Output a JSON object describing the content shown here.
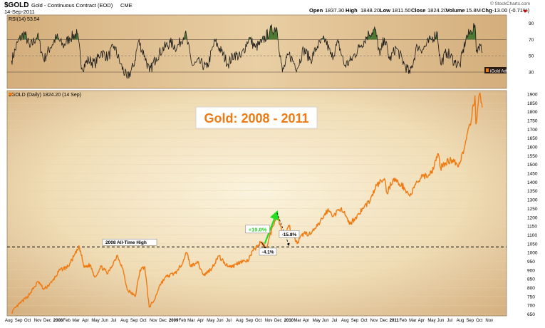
{
  "header": {
    "symbol": "$GOLD",
    "description": "Gold - Continuous Contract (EOD)",
    "exchange": "CME",
    "date": "14-Sep-2011",
    "open_label": "Open",
    "open": "1837.30",
    "high_label": "High",
    "high": "1848.20",
    "low_label": "Low",
    "low": "1811.50",
    "close_label": "Close",
    "close": "1824.20",
    "volume_label": "Volume",
    "volume": "15.8M",
    "chg_label": "Chg",
    "chg": "-13.00 (-0.71%)",
    "watermark": "© StockCharts.com"
  },
  "chart_data": [
    {
      "type": "line",
      "legend": "RSI(14) 53.54",
      "badge": "iGold Advisor",
      "ylim": [
        10,
        100
      ],
      "yticks": [
        30,
        50,
        70,
        90
      ],
      "guide_levels": [
        30,
        50,
        70
      ],
      "overbought": 70,
      "x_start": "2007-08",
      "x_end": "2011-09-14",
      "series": [
        {
          "name": "RSI(14)",
          "points": [
            [
              "2007-08-15",
              44
            ],
            [
              "2007-09-05",
              68
            ],
            [
              "2007-09-25",
              78
            ],
            [
              "2007-10-12",
              60
            ],
            [
              "2007-11-05",
              75
            ],
            [
              "2007-11-25",
              45
            ],
            [
              "2007-12-15",
              60
            ],
            [
              "2008-01-05",
              73
            ],
            [
              "2008-01-25",
              62
            ],
            [
              "2008-02-15",
              72
            ],
            [
              "2008-03-10",
              77
            ],
            [
              "2008-03-25",
              35
            ],
            [
              "2008-04-15",
              45
            ],
            [
              "2008-05-05",
              40
            ],
            [
              "2008-05-25",
              55
            ],
            [
              "2008-06-15",
              48
            ],
            [
              "2008-07-05",
              62
            ],
            [
              "2008-07-25",
              40
            ],
            [
              "2008-08-15",
              22
            ],
            [
              "2008-09-05",
              38
            ],
            [
              "2008-09-20",
              68
            ],
            [
              "2008-10-10",
              50
            ],
            [
              "2008-10-25",
              30
            ],
            [
              "2008-11-15",
              48
            ],
            [
              "2008-12-05",
              58
            ],
            [
              "2008-12-30",
              66
            ],
            [
              "2009-01-20",
              60
            ],
            [
              "2009-02-15",
              78
            ],
            [
              "2009-03-10",
              38
            ],
            [
              "2009-04-01",
              42
            ],
            [
              "2009-04-25",
              35
            ],
            [
              "2009-05-20",
              68
            ],
            [
              "2009-06-10",
              55
            ],
            [
              "2009-07-01",
              40
            ],
            [
              "2009-07-20",
              52
            ],
            [
              "2009-08-10",
              48
            ],
            [
              "2009-09-05",
              72
            ],
            [
              "2009-09-25",
              60
            ],
            [
              "2009-10-15",
              66
            ],
            [
              "2009-11-10",
              80
            ],
            [
              "2009-12-02",
              85
            ],
            [
              "2009-12-20",
              30
            ],
            [
              "2010-01-10",
              52
            ],
            [
              "2010-02-05",
              35
            ],
            [
              "2010-02-25",
              58
            ],
            [
              "2010-03-20",
              45
            ],
            [
              "2010-04-10",
              62
            ],
            [
              "2010-05-05",
              70
            ],
            [
              "2010-05-25",
              48
            ],
            [
              "2010-06-15",
              66
            ],
            [
              "2010-07-05",
              38
            ],
            [
              "2010-07-25",
              44
            ],
            [
              "2010-08-20",
              60
            ],
            [
              "2010-09-20",
              77
            ],
            [
              "2010-10-10",
              82
            ],
            [
              "2010-10-25",
              50
            ],
            [
              "2010-11-08",
              72
            ],
            [
              "2010-11-25",
              45
            ],
            [
              "2010-12-15",
              60
            ],
            [
              "2011-01-10",
              40
            ],
            [
              "2011-01-28",
              28
            ],
            [
              "2011-02-20",
              62
            ],
            [
              "2011-03-10",
              58
            ],
            [
              "2011-04-05",
              70
            ],
            [
              "2011-04-25",
              78
            ],
            [
              "2011-05-05",
              40
            ],
            [
              "2011-05-25",
              55
            ],
            [
              "2011-06-20",
              42
            ],
            [
              "2011-07-05",
              38
            ],
            [
              "2011-07-25",
              72
            ],
            [
              "2011-08-10",
              80
            ],
            [
              "2011-08-22",
              88
            ],
            [
              "2011-08-26",
              55
            ],
            [
              "2011-09-06",
              65
            ],
            [
              "2011-09-14",
              53.54
            ]
          ]
        }
      ]
    },
    {
      "type": "line",
      "legend": "$GOLD (Daily) 1824.20 (14 Sep)",
      "title": "Gold: 2008 - 2011",
      "ylim": [
        640,
        1920
      ],
      "yticks": [
        650,
        700,
        750,
        800,
        850,
        900,
        950,
        1000,
        1050,
        1100,
        1150,
        1200,
        1250,
        1300,
        1350,
        1400,
        1450,
        1500,
        1550,
        1600,
        1650,
        1700,
        1750,
        1800,
        1850,
        1900
      ],
      "x_labels": [
        "Aug",
        "Sep",
        "Oct",
        "Nov",
        "Dec",
        "2008",
        "Feb",
        "Mar",
        "Apr",
        "May",
        "Jun",
        "Jul",
        "Aug",
        "Sep",
        "Oct",
        "Nov",
        "Dec",
        "2009",
        "Feb",
        "Mar",
        "Apr",
        "May",
        "Jun",
        "Jul",
        "Aug",
        "Sep",
        "Oct",
        "Nov",
        "Dec",
        "2010",
        "Mar",
        "Apr",
        "May",
        "Jun",
        "Jul",
        "Aug",
        "Sep",
        "Oct",
        "Nov",
        "Dec",
        "2011",
        "Feb",
        "Mar",
        "Apr",
        "May",
        "Jun",
        "Jul",
        "Aug",
        "Sep",
        "Oct",
        "Nov"
      ],
      "reference_line": {
        "label": "2008 All-Time High",
        "value": 1032
      },
      "series": [
        {
          "name": "$GOLD",
          "points": [
            [
              "2007-08-15",
              660
            ],
            [
              "2007-09-10",
              710
            ],
            [
              "2007-10-05",
              750
            ],
            [
              "2007-11-08",
              835
            ],
            [
              "2007-11-25",
              790
            ],
            [
              "2007-12-20",
              830
            ],
            [
              "2008-01-15",
              900
            ],
            [
              "2008-02-10",
              920
            ],
            [
              "2008-03-17",
              1032
            ],
            [
              "2008-04-01",
              915
            ],
            [
              "2008-04-20",
              930
            ],
            [
              "2008-05-05",
              860
            ],
            [
              "2008-05-25",
              920
            ],
            [
              "2008-06-15",
              880
            ],
            [
              "2008-07-15",
              985
            ],
            [
              "2008-08-01",
              910
            ],
            [
              "2008-08-15",
              790
            ],
            [
              "2008-09-10",
              750
            ],
            [
              "2008-09-25",
              900
            ],
            [
              "2008-10-10",
              920
            ],
            [
              "2008-10-24",
              690
            ],
            [
              "2008-11-10",
              730
            ],
            [
              "2008-11-25",
              810
            ],
            [
              "2008-12-15",
              860
            ],
            [
              "2009-01-10",
              880
            ],
            [
              "2009-01-25",
              900
            ],
            [
              "2009-02-20",
              1000
            ],
            [
              "2009-03-05",
              920
            ],
            [
              "2009-03-25",
              950
            ],
            [
              "2009-04-15",
              870
            ],
            [
              "2009-05-10",
              910
            ],
            [
              "2009-06-01",
              980
            ],
            [
              "2009-06-25",
              930
            ],
            [
              "2009-07-15",
              920
            ],
            [
              "2009-08-10",
              950
            ],
            [
              "2009-09-01",
              950
            ],
            [
              "2009-09-18",
              1010
            ],
            [
              "2009-10-14",
              1060
            ],
            [
              "2009-10-29",
              1020
            ],
            [
              "2009-11-20",
              1150
            ],
            [
              "2009-12-03",
              1226
            ],
            [
              "2009-12-22",
              1090
            ],
            [
              "2010-01-10",
              1150
            ],
            [
              "2010-02-05",
              1050
            ],
            [
              "2010-02-25",
              1110
            ],
            [
              "2010-03-20",
              1105
            ],
            [
              "2010-04-10",
              1150
            ],
            [
              "2010-05-12",
              1240
            ],
            [
              "2010-06-01",
              1210
            ],
            [
              "2010-06-25",
              1255
            ],
            [
              "2010-07-20",
              1160
            ],
            [
              "2010-08-10",
              1200
            ],
            [
              "2010-09-01",
              1250
            ],
            [
              "2010-09-25",
              1300
            ],
            [
              "2010-10-14",
              1380
            ],
            [
              "2010-11-08",
              1420
            ],
            [
              "2010-11-16",
              1340
            ],
            [
              "2010-12-07",
              1420
            ],
            [
              "2010-12-25",
              1390
            ],
            [
              "2011-01-10",
              1370
            ],
            [
              "2011-01-28",
              1320
            ],
            [
              "2011-02-20",
              1400
            ],
            [
              "2011-03-10",
              1430
            ],
            [
              "2011-04-05",
              1450
            ],
            [
              "2011-04-28",
              1560
            ],
            [
              "2011-05-05",
              1480
            ],
            [
              "2011-05-20",
              1510
            ],
            [
              "2011-06-15",
              1530
            ],
            [
              "2011-07-01",
              1490
            ],
            [
              "2011-07-20",
              1600
            ],
            [
              "2011-08-10",
              1750
            ],
            [
              "2011-08-22",
              1890
            ],
            [
              "2011-08-25",
              1730
            ],
            [
              "2011-09-05",
              1900
            ],
            [
              "2011-09-14",
              1824.2
            ]
          ]
        }
      ],
      "annotations": [
        {
          "text": "+19.0%",
          "color": "#2ccf2c"
        },
        {
          "text": "-15.8%",
          "color": "#000000"
        },
        {
          "text": "-4.1%",
          "color": "#000000"
        }
      ]
    }
  ],
  "colors": {
    "price_line": "#f07a12",
    "rsi_line": "#1a1a1a",
    "overbought_fill": "#4c7a32",
    "up_arrow": "#22dd22",
    "title_text": "#f07a12",
    "gradient_edge": "#d5b080",
    "gradient_center": "#fbf3dd"
  }
}
